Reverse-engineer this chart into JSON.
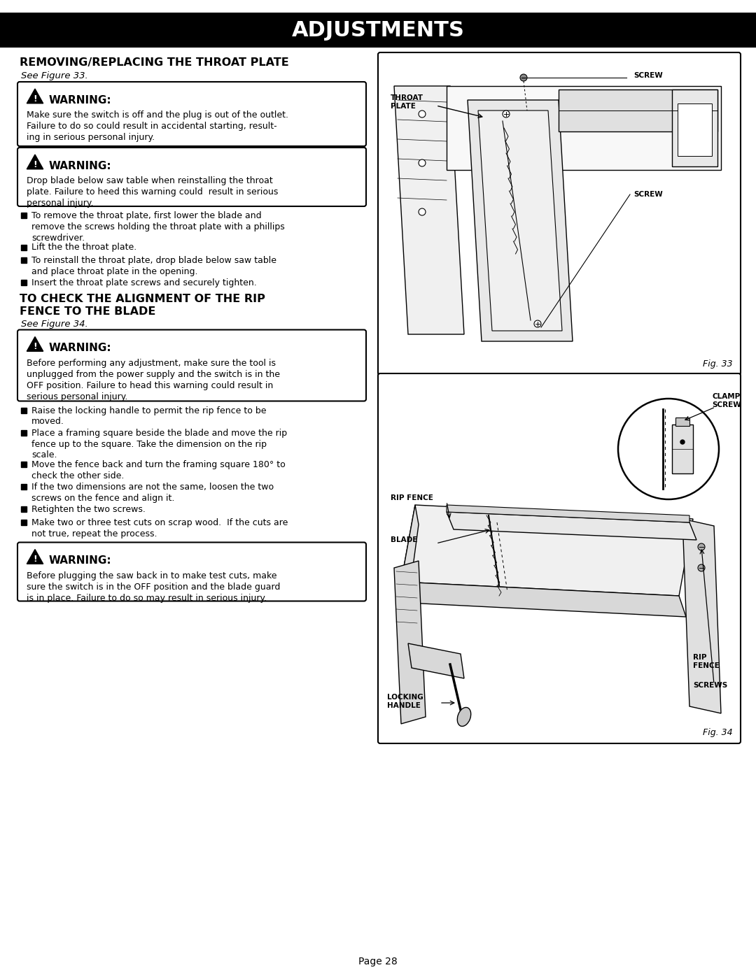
{
  "title": "ADJUSTMENTS",
  "title_bg": "#000000",
  "title_color": "#ffffff",
  "page_bg": "#ffffff",
  "page_num": "Page 28",
  "section1_heading": "REMOVING/REPLACING THE THROAT PLATE",
  "section1_see": "See Figure 33.",
  "warning1_title": "WARNING:",
  "warning1_text": "Make sure the switch is off and the plug is out of the outlet.\nFailure to do so could result in accidental starting, result-\ning in serious personal injury.",
  "warning2_title": "WARNING:",
  "warning2_text": "Drop blade below saw table when reinstalling the throat\nplate. Failure to heed this warning could  result in serious\npersonal injury.",
  "bullets1": [
    "To remove the throat plate, first lower the blade and\nremove the screws holding the throat plate with a phillips\nscrewdriver.",
    "Lift the the throat plate.",
    "To reinstall the throat plate, drop blade below saw table\nand place throat plate in the opening.",
    "Insert the throat plate screws and securely tighten."
  ],
  "section2_heading_line1": "TO CHECK THE ALIGNMENT OF THE RIP",
  "section2_heading_line2": "FENCE TO THE BLADE",
  "section2_see": "See Figure 34.",
  "warning3_title": "WARNING:",
  "warning3_text": "Before performing any adjustment, make sure the tool is\nunplugged from the power supply and the switch is in the\nOFF position. Failure to head this warning could result in\nserious personal injury.",
  "bullets2": [
    "Raise the locking handle to permit the rip fence to be\nmoved.",
    "Place a framing square beside the blade and move the rip\nfence up to the square. Take the dimension on the rip\nscale.",
    "Move the fence back and turn the framing square 180° to\ncheck the other side.",
    "If the two dimensions are not the same, loosen the two\nscrews on the fence and align it.",
    "Retighten the two screws.",
    "Make two or three test cuts on scrap wood.  If the cuts are\nnot true, repeat the process."
  ],
  "warning4_title": "WARNING:",
  "warning4_text": "Before plugging the saw back in to make test cuts, make\nsure the switch is in the OFF position and the blade guard\nis in place. Failure to do so may result in serious injury.",
  "fig33_label": "Fig. 33",
  "fig34_label": "Fig. 34"
}
